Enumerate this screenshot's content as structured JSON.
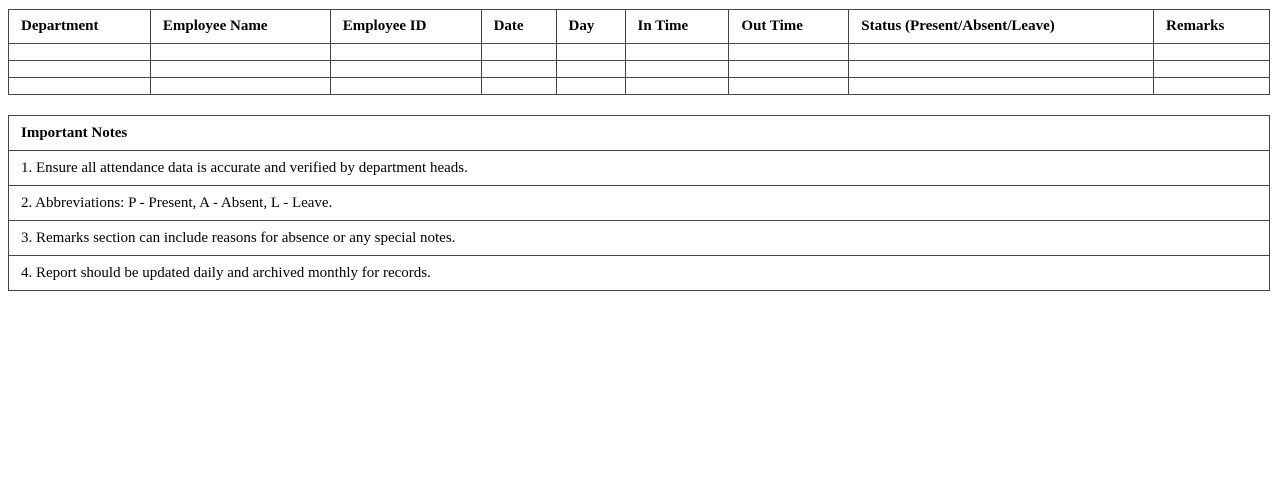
{
  "attendance": {
    "columns": [
      "Department",
      "Employee Name",
      "Employee ID",
      "Date",
      "Day",
      "In Time",
      "Out Time",
      "Status (Present/Absent/Leave)",
      "Remarks"
    ],
    "rows": [
      [
        "",
        "",
        "",
        "",
        "",
        "",
        "",
        "",
        ""
      ],
      [
        "",
        "",
        "",
        "",
        "",
        "",
        "",
        "",
        ""
      ],
      [
        "",
        "",
        "",
        "",
        "",
        "",
        "",
        "",
        ""
      ]
    ]
  },
  "notes": {
    "title": "Important Notes",
    "items": [
      "1. Ensure all attendance data is accurate and verified by department heads.",
      "2. Abbreviations: P - Present, A - Absent, L - Leave.",
      "3. Remarks section can include reasons for absence or any special notes.",
      "4. Report should be updated daily and archived monthly for records."
    ]
  }
}
